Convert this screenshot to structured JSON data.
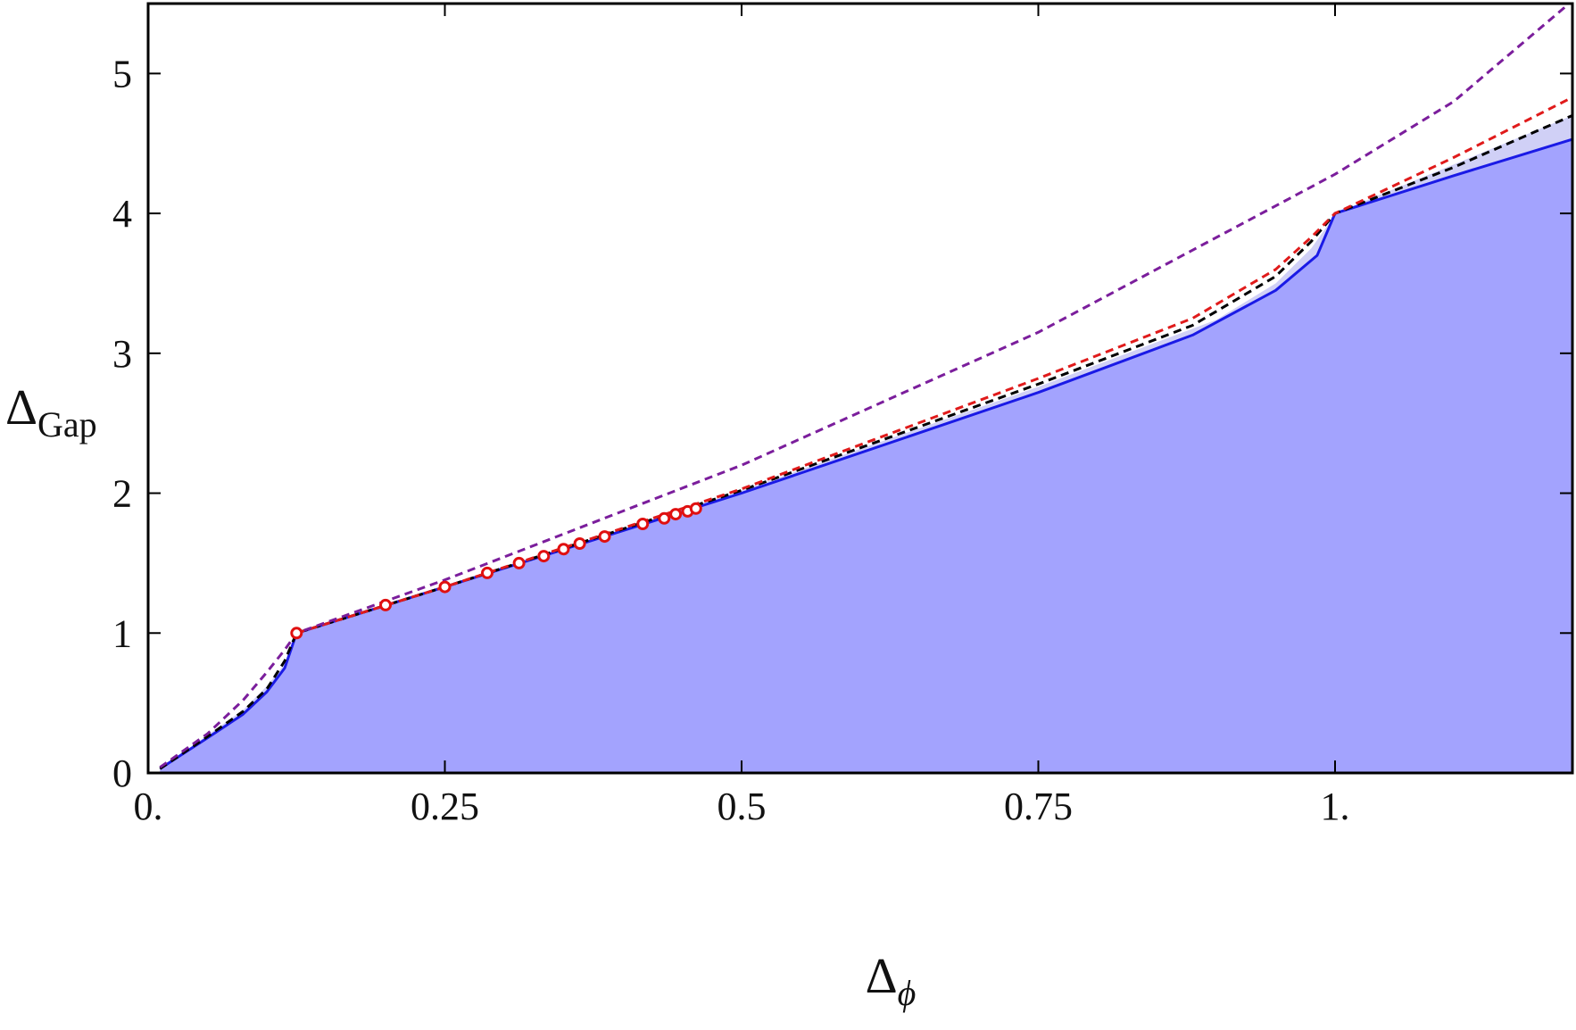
{
  "chart_data": {
    "type": "area",
    "title": "",
    "xlabel": {
      "main": "Δ",
      "sub": "ϕ",
      "sub_italic": true
    },
    "ylabel": {
      "main": "Δ",
      "sub": "Gap",
      "sub_italic": false
    },
    "xlim": [
      0,
      1.2
    ],
    "ylim": [
      0,
      5.5
    ],
    "x_ticks": [
      {
        "value": 0,
        "label": "0."
      },
      {
        "value": 0.25,
        "label": "0.25"
      },
      {
        "value": 0.5,
        "label": "0.5"
      },
      {
        "value": 0.75,
        "label": "0.75"
      },
      {
        "value": 1.0,
        "label": "1."
      }
    ],
    "y_ticks": [
      {
        "value": 0,
        "label": "0"
      },
      {
        "value": 1,
        "label": "1"
      },
      {
        "value": 2,
        "label": "2"
      },
      {
        "value": 3,
        "label": "3"
      },
      {
        "value": 4,
        "label": "4"
      },
      {
        "value": 5,
        "label": "5"
      }
    ],
    "grid": false,
    "legend": "none",
    "colors": {
      "fill_dark": "#a3a3fe",
      "fill_light": "#d0d0f6",
      "blue_line": "#1a1ae6",
      "purple_dashed": "#7b1e9c",
      "red_dashed": "#e01b1b",
      "black_dashed": "#000000",
      "marker_edge": "#e01010",
      "marker_fill": "#ffffff"
    },
    "series": [
      {
        "kind": "light-band-upper",
        "points": [
          [
            0.01,
            0.03
          ],
          [
            0.05,
            0.27
          ],
          [
            0.08,
            0.45
          ],
          [
            0.1,
            0.62
          ],
          [
            0.115,
            0.78
          ],
          [
            0.125,
            1.0
          ],
          [
            0.25,
            1.33
          ],
          [
            0.5,
            2.02
          ],
          [
            0.75,
            2.76
          ],
          [
            0.9,
            3.24
          ],
          [
            0.95,
            3.5
          ],
          [
            0.98,
            3.75
          ],
          [
            0.995,
            3.93
          ],
          [
            1.0,
            4.0
          ],
          [
            1.1,
            4.35
          ],
          [
            1.2,
            4.7
          ]
        ]
      },
      {
        "kind": "solid-bound",
        "points": [
          [
            0.01,
            0.03
          ],
          [
            0.05,
            0.25
          ],
          [
            0.08,
            0.42
          ],
          [
            0.1,
            0.58
          ],
          [
            0.115,
            0.75
          ],
          [
            0.125,
            1.0
          ],
          [
            0.25,
            1.33
          ],
          [
            0.5,
            2.0
          ],
          [
            0.75,
            2.72
          ],
          [
            0.88,
            3.13
          ],
          [
            0.95,
            3.45
          ],
          [
            0.985,
            3.7
          ],
          [
            1.0,
            4.0
          ],
          [
            1.1,
            4.27
          ],
          [
            1.2,
            4.53
          ]
        ]
      },
      {
        "kind": "dashed-black",
        "points": [
          [
            0.01,
            0.03
          ],
          [
            0.05,
            0.26
          ],
          [
            0.08,
            0.44
          ],
          [
            0.1,
            0.6
          ],
          [
            0.115,
            0.8
          ],
          [
            0.125,
            1.0
          ],
          [
            0.25,
            1.33
          ],
          [
            0.5,
            2.02
          ],
          [
            0.75,
            2.78
          ],
          [
            0.88,
            3.2
          ],
          [
            0.95,
            3.55
          ],
          [
            0.98,
            3.8
          ],
          [
            1.0,
            4.0
          ],
          [
            1.1,
            4.33
          ],
          [
            1.2,
            4.7
          ]
        ]
      },
      {
        "kind": "dashed-red",
        "points": [
          [
            0.125,
            1.0
          ],
          [
            0.25,
            1.33
          ],
          [
            0.5,
            2.03
          ],
          [
            0.75,
            2.82
          ],
          [
            0.88,
            3.25
          ],
          [
            0.95,
            3.6
          ],
          [
            0.98,
            3.83
          ],
          [
            1.0,
            4.0
          ],
          [
            1.1,
            4.4
          ],
          [
            1.2,
            4.83
          ]
        ]
      },
      {
        "kind": "dashed-purple",
        "points": [
          [
            0.01,
            0.04
          ],
          [
            0.05,
            0.28
          ],
          [
            0.08,
            0.52
          ],
          [
            0.1,
            0.72
          ],
          [
            0.115,
            0.88
          ],
          [
            0.125,
            1.0
          ],
          [
            0.25,
            1.38
          ],
          [
            0.5,
            2.2
          ],
          [
            0.75,
            3.15
          ],
          [
            1.0,
            4.28
          ],
          [
            1.1,
            4.8
          ],
          [
            1.2,
            5.52
          ]
        ]
      }
    ],
    "markers": [
      [
        0.125,
        1.0
      ],
      [
        0.2,
        1.2
      ],
      [
        0.25,
        1.33
      ],
      [
        0.2857,
        1.43
      ],
      [
        0.3125,
        1.5
      ],
      [
        0.3333,
        1.55
      ],
      [
        0.35,
        1.6
      ],
      [
        0.3636,
        1.64
      ],
      [
        0.3846,
        1.69
      ],
      [
        0.4167,
        1.78
      ],
      [
        0.4348,
        1.82
      ],
      [
        0.4444,
        1.85
      ],
      [
        0.4545,
        1.87
      ],
      [
        0.4615,
        1.89
      ]
    ]
  }
}
